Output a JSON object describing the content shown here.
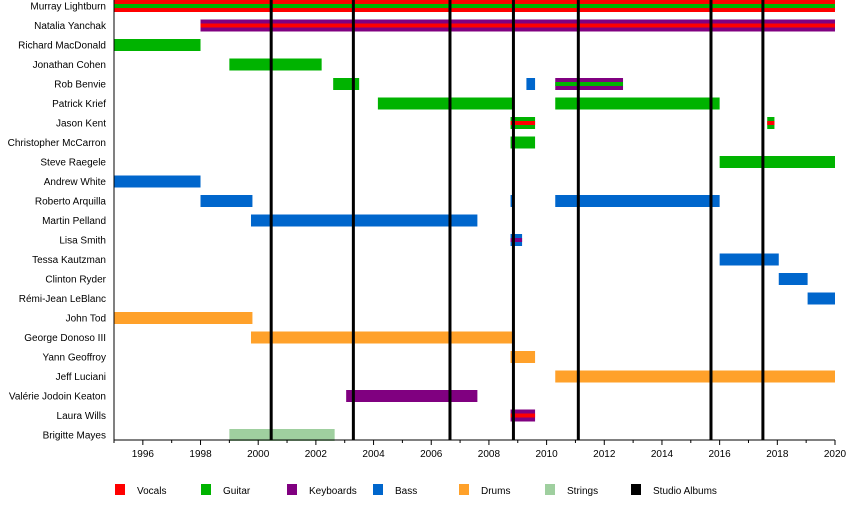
{
  "chart_data": {
    "type": "timeline",
    "title": "",
    "xlim": [
      1995,
      2020
    ],
    "x_ticks": [
      1996,
      1998,
      2000,
      2002,
      2004,
      2006,
      2008,
      2010,
      2012,
      2014,
      2016,
      2018,
      2020
    ],
    "colors": {
      "Vocals": "#ff0000",
      "Guitar": "#00b300",
      "Keyboards": "#800080",
      "Bass": "#0066cc",
      "Drums": "#ffa12a",
      "Strings": "#9fcf9f",
      "Studio Albums": "#000000"
    },
    "legend": [
      "Vocals",
      "Guitar",
      "Keyboards",
      "Bass",
      "Drums",
      "Strings",
      "Studio Albums"
    ],
    "legend_position": "bottom",
    "members": [
      {
        "name": "Murray Lightburn",
        "periods": [
          {
            "start": 1995,
            "end": 2020,
            "role": "Vocals",
            "stripe": "Guitar"
          }
        ]
      },
      {
        "name": "Natalia Yanchak",
        "periods": [
          {
            "start": 1998,
            "end": 2020,
            "role": "Keyboards",
            "stripe": "Vocals"
          }
        ]
      },
      {
        "name": "Richard MacDonald",
        "periods": [
          {
            "start": 1995,
            "end": 1998,
            "role": "Guitar"
          }
        ]
      },
      {
        "name": "Jonathan Cohen",
        "periods": [
          {
            "start": 1999,
            "end": 2002.2,
            "role": "Guitar"
          }
        ]
      },
      {
        "name": "Rob Benvie",
        "periods": [
          {
            "start": 2002.6,
            "end": 2003.5,
            "role": "Guitar"
          },
          {
            "start": 2009.3,
            "end": 2009.6,
            "role": "Bass"
          },
          {
            "start": 2010.3,
            "end": 2012.65,
            "role": "Keyboards",
            "stripe": "Guitar"
          }
        ]
      },
      {
        "name": "Patrick Krief",
        "periods": [
          {
            "start": 2004.15,
            "end": 2008.85,
            "role": "Guitar"
          },
          {
            "start": 2010.3,
            "end": 2016,
            "role": "Guitar"
          }
        ]
      },
      {
        "name": "Jason Kent",
        "periods": [
          {
            "start": 2008.75,
            "end": 2009.6,
            "role": "Guitar",
            "stripe": "Vocals"
          },
          {
            "start": 2017.65,
            "end": 2017.9,
            "role": "Guitar",
            "stripe": "Vocals"
          }
        ]
      },
      {
        "name": "Christopher McCarron",
        "periods": [
          {
            "start": 2008.75,
            "end": 2009.6,
            "role": "Guitar"
          }
        ]
      },
      {
        "name": "Steve Raegele",
        "periods": [
          {
            "start": 2016,
            "end": 2020,
            "role": "Guitar"
          }
        ]
      },
      {
        "name": "Andrew White",
        "periods": [
          {
            "start": 1995,
            "end": 1998,
            "role": "Bass"
          }
        ]
      },
      {
        "name": "Roberto Arquilla",
        "periods": [
          {
            "start": 1998,
            "end": 1999.8,
            "role": "Bass"
          },
          {
            "start": 2008.75,
            "end": 2008.85,
            "role": "Bass"
          },
          {
            "start": 2010.3,
            "end": 2016,
            "role": "Bass"
          }
        ]
      },
      {
        "name": "Martin Pelland",
        "periods": [
          {
            "start": 1999.75,
            "end": 2007.6,
            "role": "Bass"
          }
        ]
      },
      {
        "name": "Lisa Smith",
        "periods": [
          {
            "start": 2008.75,
            "end": 2009.15,
            "role": "Bass",
            "stripe": "Keyboards"
          }
        ]
      },
      {
        "name": "Tessa Kautzman",
        "periods": [
          {
            "start": 2016,
            "end": 2018.05,
            "role": "Bass"
          }
        ]
      },
      {
        "name": "Clinton Ryder",
        "periods": [
          {
            "start": 2018.05,
            "end": 2019.05,
            "role": "Bass"
          }
        ]
      },
      {
        "name": "Rémi-Jean LeBlanc",
        "periods": [
          {
            "start": 2019.05,
            "end": 2020,
            "role": "Bass"
          }
        ]
      },
      {
        "name": "John Tod",
        "periods": [
          {
            "start": 1995,
            "end": 1999.8,
            "role": "Drums"
          }
        ]
      },
      {
        "name": "George Donoso III",
        "periods": [
          {
            "start": 1999.75,
            "end": 2008.85,
            "role": "Drums"
          }
        ]
      },
      {
        "name": "Yann Geoffroy",
        "periods": [
          {
            "start": 2008.75,
            "end": 2009.6,
            "role": "Drums"
          }
        ]
      },
      {
        "name": "Jeff Luciani",
        "periods": [
          {
            "start": 2010.3,
            "end": 2020,
            "role": "Drums"
          }
        ]
      },
      {
        "name": "Valérie Jodoin Keaton",
        "periods": [
          {
            "start": 2003.05,
            "end": 2007.6,
            "role": "Keyboards"
          }
        ]
      },
      {
        "name": "Laura Wills",
        "periods": [
          {
            "start": 2008.75,
            "end": 2009.6,
            "role": "Keyboards",
            "stripe": "Vocals"
          }
        ]
      },
      {
        "name": "Brigitte Mayes",
        "periods": [
          {
            "start": 1999,
            "end": 2002.65,
            "role": "Strings"
          }
        ]
      }
    ],
    "studio_albums": [
      2000.45,
      2003.3,
      2006.65,
      2008.85,
      2011.1,
      2015.7,
      2017.5
    ]
  }
}
